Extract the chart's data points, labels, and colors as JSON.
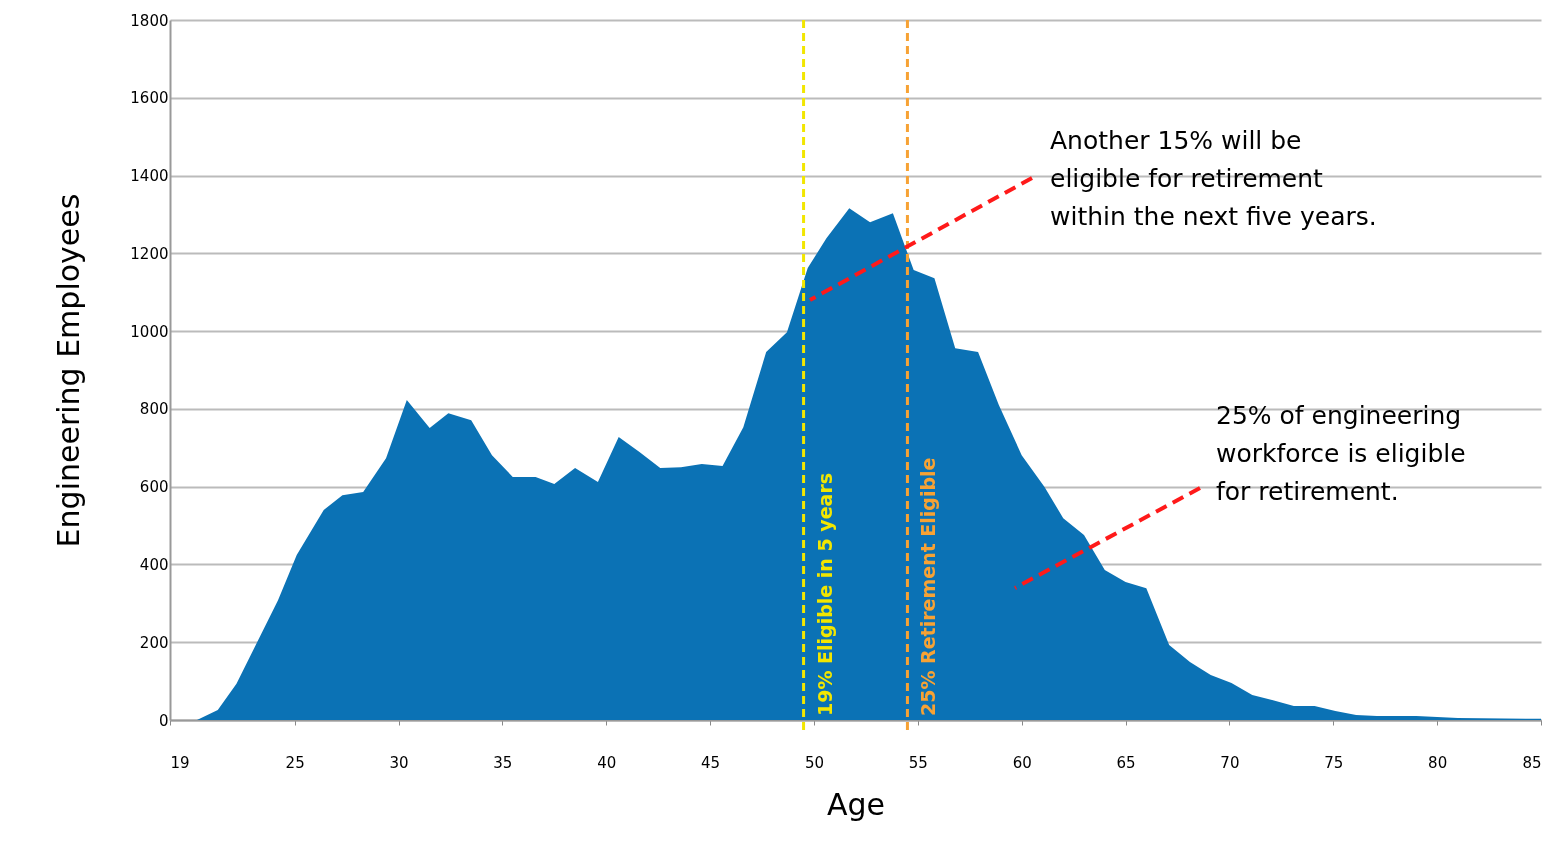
{
  "chart_data": {
    "type": "area",
    "xlabel": "Age",
    "ylabel": "Engineering Employees",
    "x": [
      20.3,
      21.3,
      22.2,
      24.2,
      25.1,
      26.4,
      27.3,
      28.3,
      29.4,
      30.4,
      31.5,
      32.4,
      33.5,
      34.5,
      35.5,
      36.6,
      37.5,
      38.5,
      39.6,
      40.6,
      41.6,
      42.6,
      43.6,
      44.6,
      45.6,
      46.6,
      47.7,
      48.7,
      49.7,
      50.6,
      51.7,
      52.7,
      53.8,
      54.8,
      55.8,
      56.8,
      57.9,
      58.9,
      60.0,
      61.1,
      62.0,
      63.0,
      64.0,
      65.0,
      66.0,
      67.1,
      68.1,
      69.1,
      70.1,
      71.1,
      72.1,
      73.1,
      74.1,
      75.1,
      76.1,
      77.1,
      79.0,
      81.0,
      85.0
    ],
    "series": [
      {
        "color": "#0b72b5",
        "values": [
          0,
          26,
          93,
          308,
          424,
          540,
          578,
          586,
          673,
          823,
          751,
          789,
          771,
          681,
          625,
          625,
          607,
          648,
          612,
          728,
          689,
          648,
          650,
          658,
          653,
          753,
          946,
          997,
          1162,
          1239,
          1316,
          1280,
          1303,
          1157,
          1136,
          956,
          946,
          810,
          681,
          599,
          519,
          476,
          386,
          355,
          339,
          193,
          149,
          116,
          95,
          64,
          51,
          36,
          36,
          23,
          13,
          10,
          10,
          5,
          3
        ]
      }
    ],
    "xlim": [
      19,
      85
    ],
    "xticks": [
      19,
      25,
      30,
      35,
      40,
      45,
      50,
      55,
      60,
      65,
      70,
      75,
      80,
      85
    ],
    "ylim": [
      0,
      1800
    ],
    "yticks": [
      0,
      200,
      400,
      600,
      800,
      1000,
      1200,
      1400,
      1600,
      1800
    ],
    "grid": "y",
    "ref_lines": [
      {
        "axis": "x",
        "value": 49.5,
        "label": "19% Eligible in 5 years",
        "color": "#f2e600",
        "line_style": "dashed"
      },
      {
        "axis": "x",
        "value": 54.5,
        "label": "25% Retirement Eligible",
        "color": "#f7a234",
        "line_style": "dashed"
      }
    ],
    "annotations": [
      "Another 15% will be\neligible for retirement\nwithin the next five years.",
      "25% of engineering\nworkforce is eligible\nfor retirement."
    ]
  }
}
